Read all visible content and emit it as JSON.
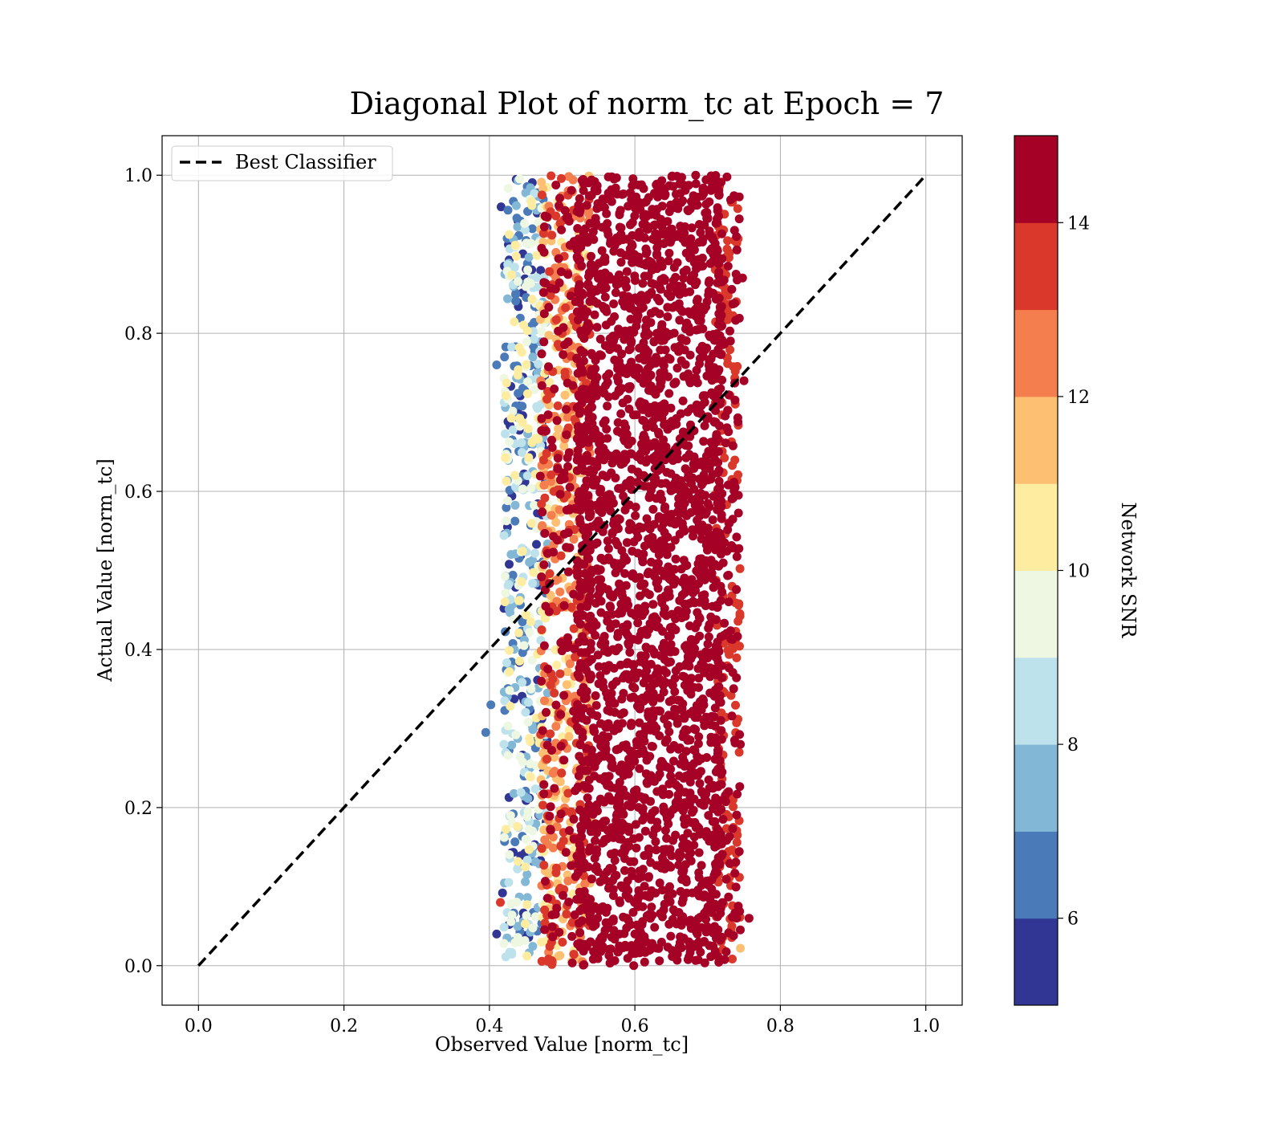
{
  "chart_data": {
    "type": "scatter",
    "title": "Diagonal Plot of norm_tc at Epoch = 7",
    "xlabel": "Observed Value [norm_tc]",
    "ylabel": "Actual Value [norm_tc]",
    "xlim": [
      -0.05,
      1.05
    ],
    "ylim": [
      -0.05,
      1.05
    ],
    "xticks": [
      "0.0",
      "0.2",
      "0.4",
      "0.6",
      "0.8",
      "1.0"
    ],
    "yticks": [
      "0.0",
      "0.2",
      "0.4",
      "0.6",
      "0.8",
      "1.0"
    ],
    "grid": true,
    "legend": {
      "placement": "upper-left",
      "entries": [
        "Best Classifier"
      ]
    },
    "series": [
      {
        "name": "Best Classifier",
        "kind": "line",
        "style": "dashed",
        "color": "#000000",
        "x": [
          0.0,
          1.0
        ],
        "y": [
          0.0,
          1.0
        ]
      }
    ],
    "scatter_summary": {
      "x_range": [
        0.4,
        0.76
      ],
      "y_range": [
        0.0,
        1.0
      ],
      "dense_core_x": [
        0.52,
        0.72
      ],
      "color_by": "Network SNR",
      "snr_range": [
        5,
        15
      ],
      "trend": "high SNR points concentrated at observed 0.52-0.72; low SNR points at observed 0.41-0.50"
    },
    "colorbar": {
      "label": "Network SNR",
      "range": [
        5,
        15
      ],
      "ticks": [
        "6",
        "8",
        "10",
        "12",
        "14"
      ],
      "bins": [
        {
          "from": 5,
          "to": 6,
          "color": "#313695"
        },
        {
          "from": 6,
          "to": 7,
          "color": "#4a7ab7"
        },
        {
          "from": 7,
          "to": 8,
          "color": "#83b7d6"
        },
        {
          "from": 8,
          "to": 9,
          "color": "#bde2ec"
        },
        {
          "from": 9,
          "to": 10,
          "color": "#eef7e1"
        },
        {
          "from": 10,
          "to": 11,
          "color": "#feeda1"
        },
        {
          "from": 11,
          "to": 12,
          "color": "#fdbf71"
        },
        {
          "from": 12,
          "to": 13,
          "color": "#f57e4e"
        },
        {
          "from": 13,
          "to": 14,
          "color": "#d9382b"
        },
        {
          "from": 14,
          "to": 15,
          "color": "#a50026"
        }
      ]
    }
  }
}
